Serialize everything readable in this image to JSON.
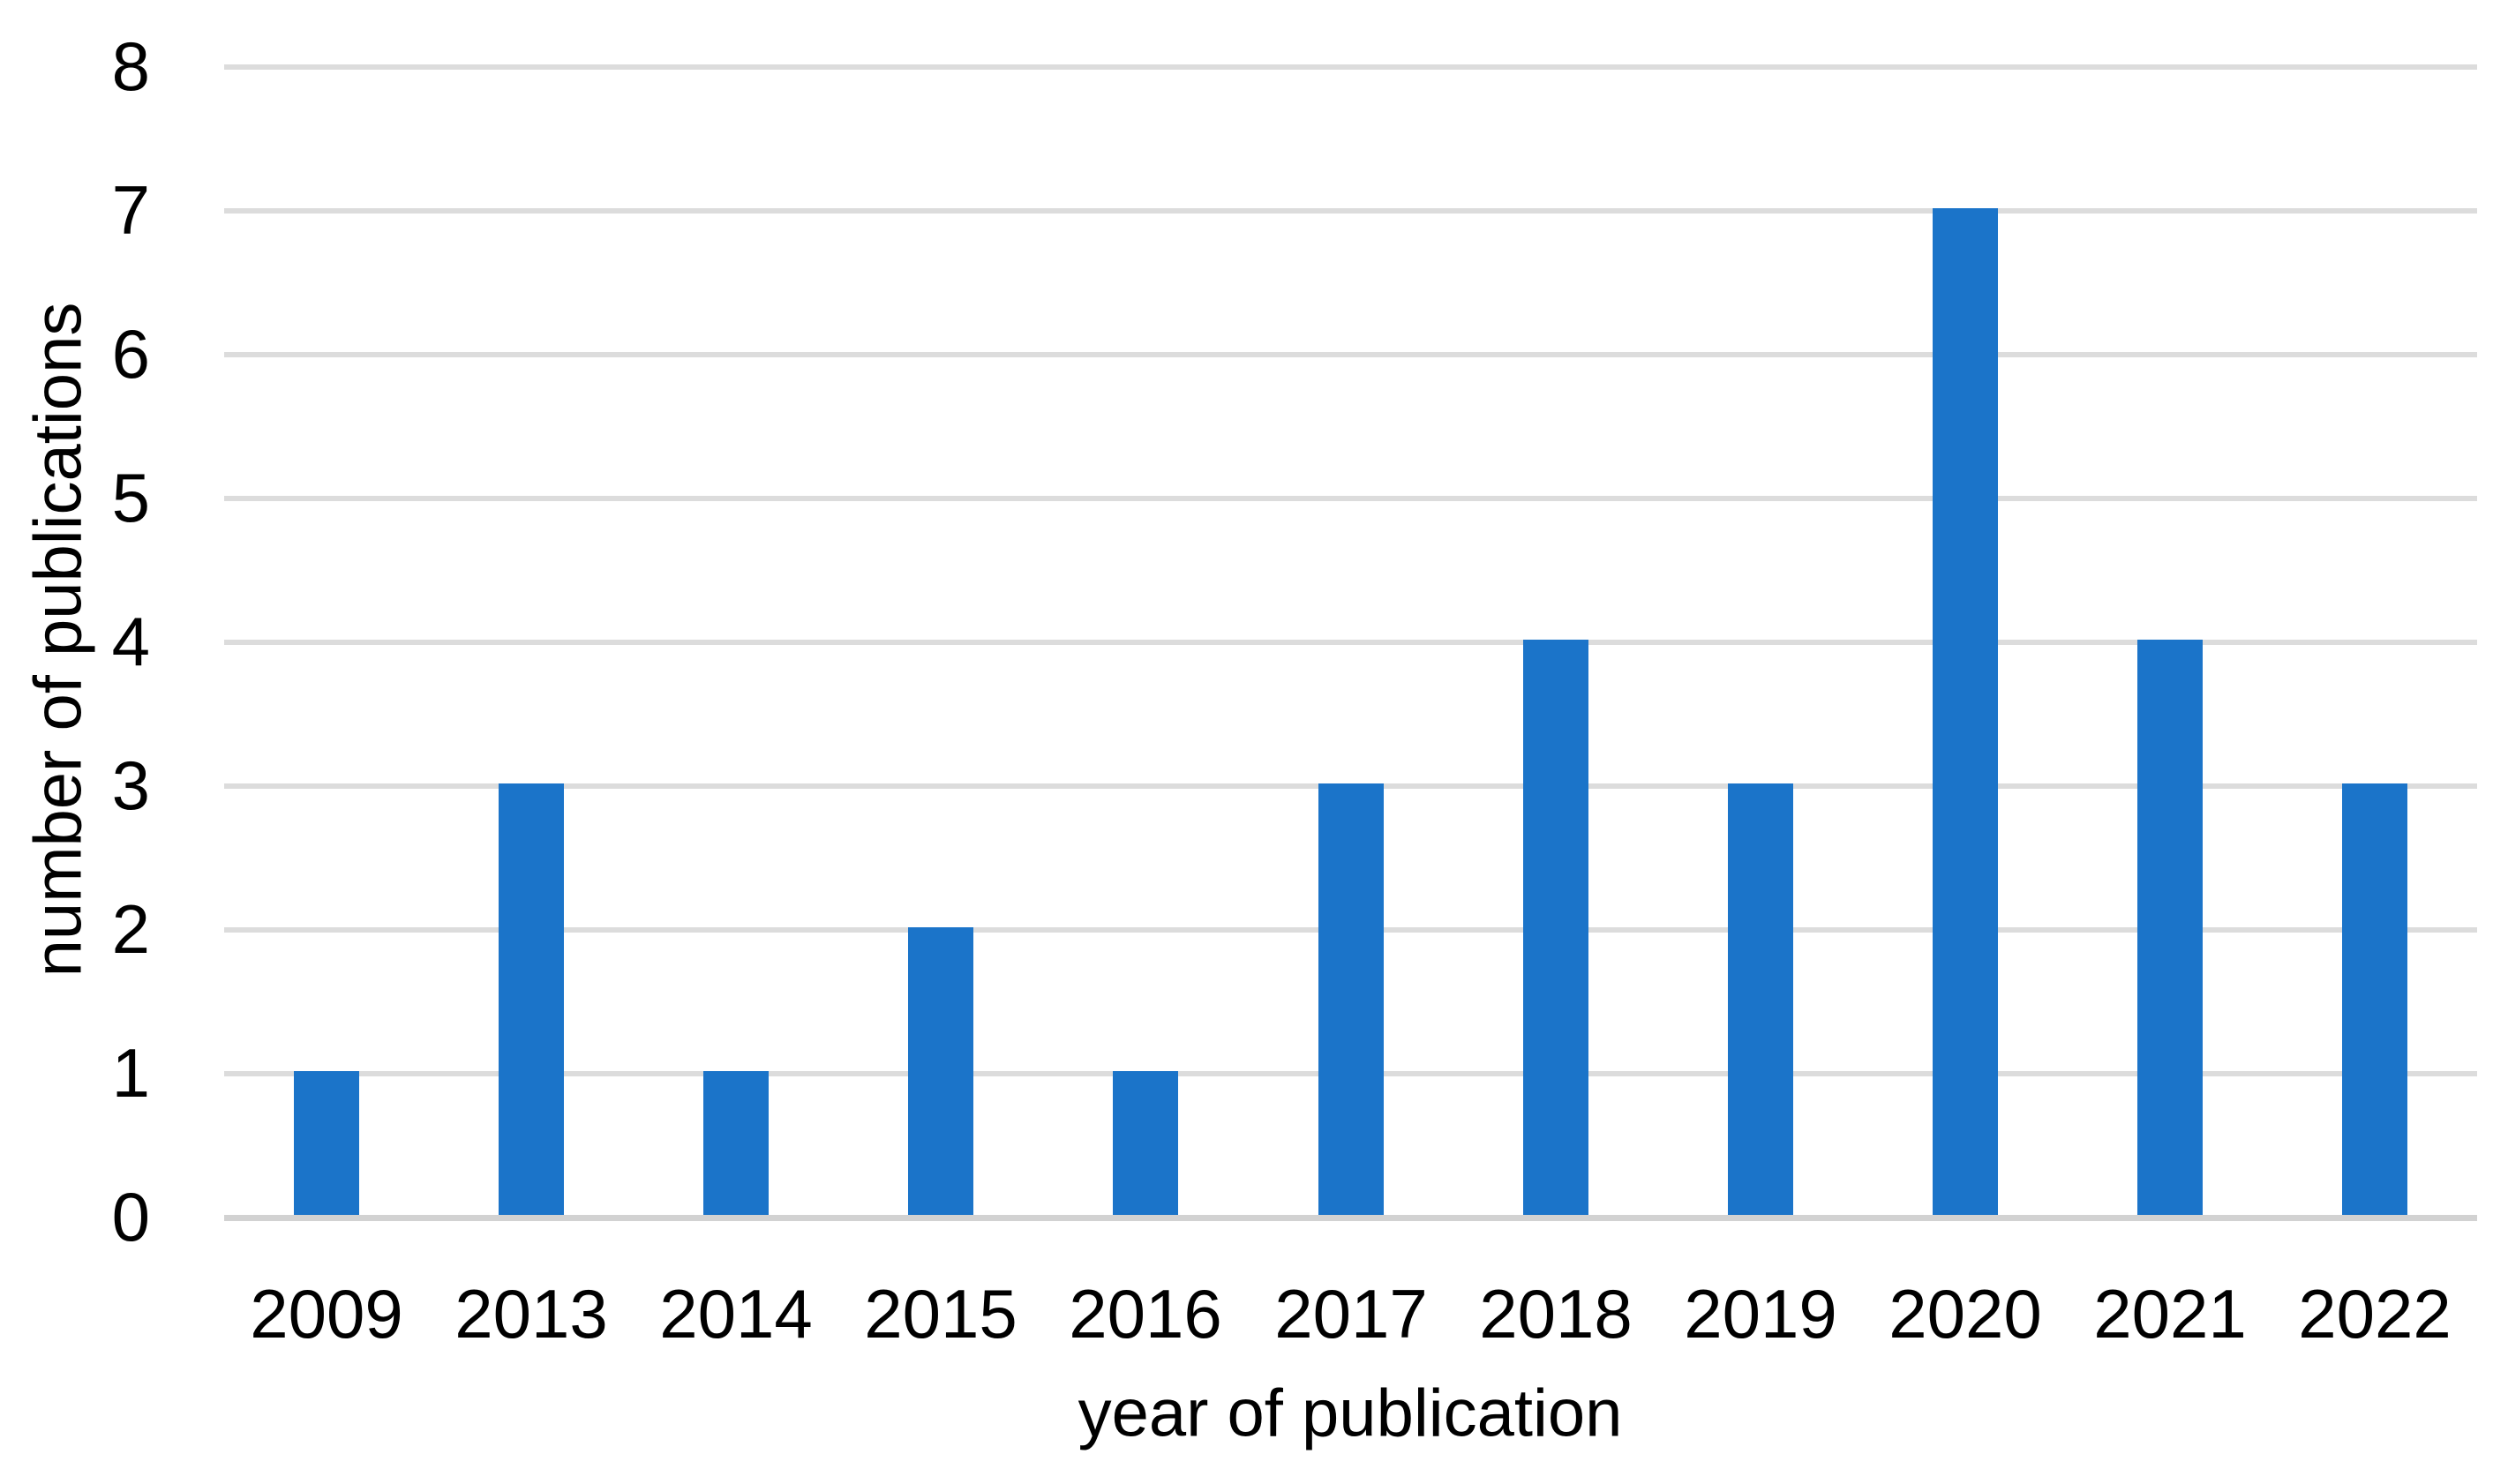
{
  "chart_data": {
    "type": "bar",
    "title": "",
    "categories": [
      "2009",
      "2013",
      "2014",
      "2015",
      "2016",
      "2017",
      "2018",
      "2019",
      "2020",
      "2021",
      "2022"
    ],
    "values": [
      1,
      3,
      1,
      2,
      1,
      3,
      4,
      3,
      7,
      4,
      3
    ],
    "xlabel": "year of publication",
    "ylabel": "number of publications",
    "ylim": [
      0,
      8
    ],
    "yticks": [
      0,
      1,
      2,
      3,
      4,
      5,
      6,
      7,
      8
    ],
    "grid": "horizontal",
    "legend": "none",
    "colors": {
      "bar": "#1B74C9",
      "gridline": "#DCDCDC",
      "axis_line": "#D2D2D2",
      "text": "#000000",
      "background": "#FFFFFF"
    }
  }
}
